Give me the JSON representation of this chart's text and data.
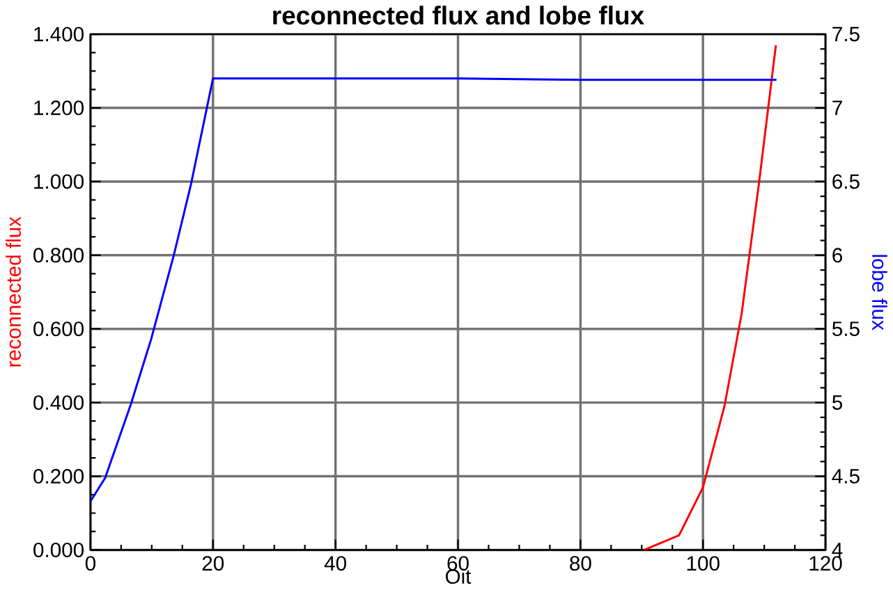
{
  "chart_data": {
    "type": "line",
    "title": "reconnected flux  and  lobe flux",
    "xlabel": "Oit",
    "ylabel": "reconnected flux",
    "y2label": "lobe flux",
    "xlim": [
      0,
      120
    ],
    "xticks": [
      0,
      20,
      40,
      60,
      80,
      100,
      120
    ],
    "ylim": [
      0,
      1.4
    ],
    "yticks": [
      {
        "value": 0,
        "label": "0.000"
      },
      {
        "value": 0.2,
        "label": "0.200"
      },
      {
        "value": 0.4,
        "label": "0.400"
      },
      {
        "value": 0.6,
        "label": "0.600"
      },
      {
        "value": 0.8,
        "label": "0.800"
      },
      {
        "value": 1.0,
        "label": "1.000"
      },
      {
        "value": 1.2,
        "label": "1.200"
      },
      {
        "value": 1.4,
        "label": "1.400"
      }
    ],
    "y2lim": [
      4,
      7.5
    ],
    "y2ticks": [
      4,
      4.5,
      5,
      5.5,
      6,
      6.5,
      7,
      7.5
    ],
    "grid": true,
    "series": [
      {
        "color": "#ff0000",
        "x": [
          90.4,
          96.1,
          100,
          103.5,
          106.3,
          109.1,
          111.9
        ],
        "values": [
          0,
          0.04,
          0.17,
          0.39,
          0.64,
          0.99,
          1.37
        ]
      },
      {
        "color": "#0000ff",
        "axis": "y2",
        "x": [
          0,
          2.4,
          6.6,
          9.9,
          13.6,
          16.4,
          20,
          40,
          60,
          80,
          112
        ],
        "values": [
          4.33,
          4.49,
          4.99,
          5.43,
          6.0,
          6.48,
          7.2,
          7.2,
          7.2,
          7.19,
          7.19
        ]
      }
    ]
  }
}
